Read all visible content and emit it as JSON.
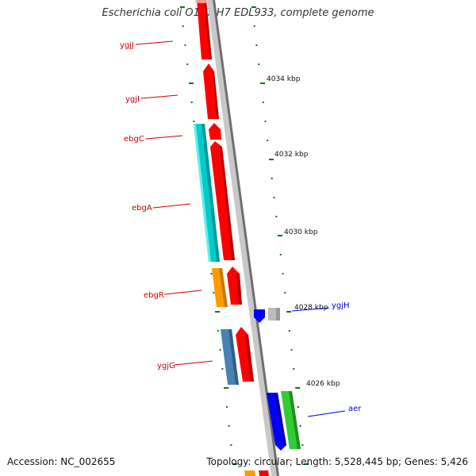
{
  "title": "Escherichia coli O157:H7 EDL933, complete genome",
  "accession": "Accession: NC_002655",
  "topology": "Topology: circular; Length: 5,528,445 bp; Genes: 5,426",
  "colors": {
    "red": "#ff0000",
    "cyan": "#00cccc",
    "orange": "#ff9900",
    "steelblue": "#4682b4",
    "blue": "#0000ff",
    "gray": "#bbbbbb",
    "green": "#33cc33",
    "backbone": "#888888",
    "tick": "#117711",
    "red_label": "#cc0000",
    "blue_label": "#0000cc"
  },
  "scale_labels": [
    "4034 kbp",
    "4032 kbp",
    "4030 kbp",
    "4028 kbp",
    "4026 kbp"
  ],
  "gene_labels": [
    {
      "text": "ygjJ",
      "color": "red"
    },
    {
      "text": "ygjI",
      "color": "red"
    },
    {
      "text": "ebgC",
      "color": "red"
    },
    {
      "text": "ebgA",
      "color": "red"
    },
    {
      "text": "ebgR",
      "color": "red"
    },
    {
      "text": "ygjG",
      "color": "red"
    },
    {
      "text": "ygjH",
      "color": "blue"
    },
    {
      "text": "aer",
      "color": "blue"
    }
  ]
}
